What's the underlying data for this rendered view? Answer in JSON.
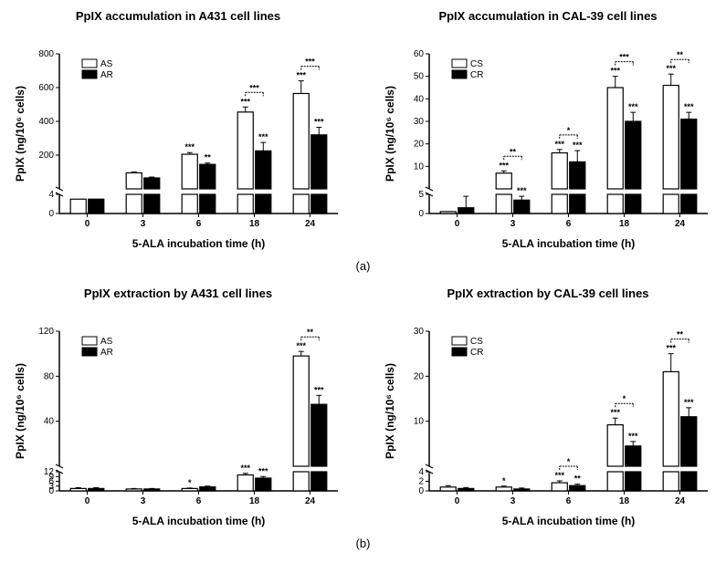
{
  "colors": {
    "bar_white": "#ffffff",
    "bar_black": "#000000",
    "stroke": "#000000",
    "bg": "#ffffff"
  },
  "x_categories": [
    "0",
    "3",
    "6",
    "18",
    "24"
  ],
  "x_label": "5-ALA incubation time (h)",
  "panels": {
    "a_left": {
      "title": "PpIX accumulation in A431 cell lines",
      "y_label": "PpIX  (ng/10⁶ cells)",
      "legend": [
        "AS",
        "AR"
      ],
      "y_break_low": [
        0,
        4
      ],
      "y_break_high": [
        0,
        800
      ],
      "y_ticks_low": [
        0,
        4
      ],
      "y_ticks_high": [
        0,
        200,
        400,
        600,
        800
      ],
      "series_white": [
        3,
        95,
        205,
        455,
        565
      ],
      "series_black": [
        3,
        65,
        145,
        225,
        320
      ],
      "err_white": [
        0,
        5,
        10,
        30,
        75
      ],
      "err_black": [
        0,
        5,
        8,
        50,
        45
      ],
      "sig_white": [
        "",
        "",
        "***",
        "***",
        "***"
      ],
      "sig_black": [
        "",
        "",
        "**",
        "***",
        "***"
      ],
      "sig_between": [
        "",
        "",
        "",
        "***",
        "***"
      ]
    },
    "a_right": {
      "title": "PpIX accumulation in CAL-39 cell lines",
      "y_label": "PpIX  (ng/10⁶ cells)",
      "legend": [
        "CS",
        "CR"
      ],
      "y_break_low": [
        0,
        5
      ],
      "y_break_high": [
        0,
        60
      ],
      "y_ticks_low": [
        0,
        5
      ],
      "y_ticks_high": [
        0,
        10,
        20,
        30,
        40,
        50,
        60
      ],
      "series_white": [
        0.5,
        7,
        16,
        45,
        46
      ],
      "series_black": [
        1.5,
        3.5,
        12,
        30,
        31
      ],
      "err_white": [
        0,
        1,
        1.5,
        5,
        5
      ],
      "err_black": [
        3,
        1,
        5,
        4,
        3
      ],
      "sig_white": [
        "",
        "***",
        "***",
        "***",
        "***"
      ],
      "sig_black": [
        "",
        "***",
        "***",
        "***",
        "***"
      ],
      "sig_between": [
        "",
        "**",
        "*",
        "***",
        "**"
      ]
    },
    "b_left": {
      "title": "PpIX extraction by A431 cell lines",
      "y_label": "PpIX  (ng/10⁶ cells)",
      "legend": [
        "AS",
        "AR"
      ],
      "y_break_low": [
        0,
        12
      ],
      "y_break_high": [
        0,
        120
      ],
      "y_ticks_low": [
        0,
        3,
        6,
        9,
        12
      ],
      "y_ticks_high": [
        0,
        40,
        80,
        120
      ],
      "series_white": [
        1.5,
        1.2,
        1.5,
        10,
        98
      ],
      "series_black": [
        1.5,
        1.2,
        2.5,
        8,
        55
      ],
      "err_white": [
        0.5,
        0.3,
        0.3,
        1,
        4
      ],
      "err_black": [
        0.5,
        0.3,
        0.5,
        1,
        8
      ],
      "sig_white": [
        "",
        "",
        "*",
        "***",
        "***"
      ],
      "sig_black": [
        "",
        "",
        "",
        "***",
        "***"
      ],
      "sig_between": [
        "",
        "",
        "",
        "",
        "**"
      ]
    },
    "b_right": {
      "title": "PpIX extraction by CAL-39 cell lines",
      "y_label": "PpIX  (ng/10⁶ cells)",
      "legend": [
        "CS",
        "CR"
      ],
      "y_break_low": [
        0,
        4
      ],
      "y_break_high": [
        0,
        30
      ],
      "y_ticks_low": [
        0,
        2,
        4
      ],
      "y_ticks_high": [
        0,
        10,
        20,
        30
      ],
      "series_white": [
        0.8,
        0.8,
        1.7,
        9.2,
        21
      ],
      "series_black": [
        0.5,
        0.4,
        1.1,
        4.5,
        11
      ],
      "err_white": [
        0.3,
        0.2,
        0.4,
        1.5,
        4
      ],
      "err_black": [
        0.2,
        0.2,
        0.3,
        1,
        2
      ],
      "sig_white": [
        "",
        "*",
        "***",
        "***",
        "***"
      ],
      "sig_black": [
        "",
        "",
        "**",
        "***",
        "***"
      ],
      "sig_between": [
        "",
        "",
        "*",
        "*",
        "**"
      ]
    }
  },
  "panel_labels": {
    "a": "(a)",
    "b": "(b)"
  }
}
